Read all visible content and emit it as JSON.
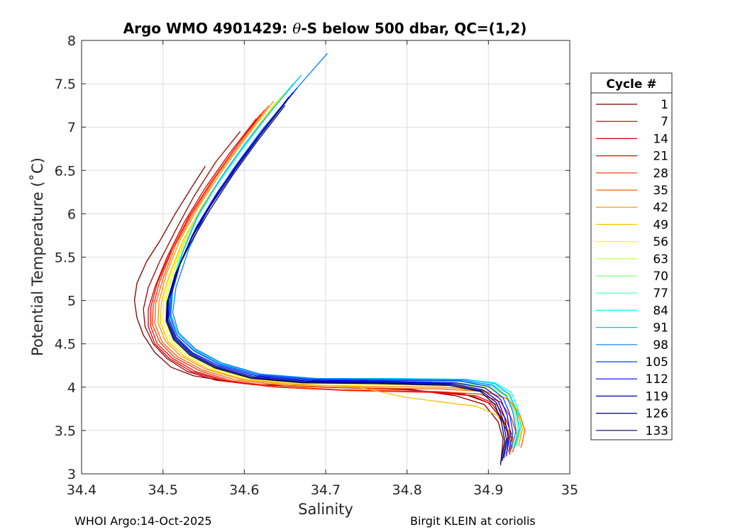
{
  "title_prefix": "Argo WMO 4901429: ",
  "title_theta": "θ",
  "title_suffix": "-S below 500 dbar,  QC=(1,2)",
  "footer_left": "WHOI Argo:14-Oct-2025",
  "footer_right": "Birgit KLEIN at coriolis",
  "chart_data": {
    "type": "line",
    "xlabel": "Salinity",
    "ylabel": "Potential Temperature (˚C)",
    "xlim": [
      34.4,
      35.0
    ],
    "ylim": [
      3.0,
      8.0
    ],
    "xticks": [
      34.4,
      34.5,
      34.6,
      34.7,
      34.8,
      34.9,
      35.0
    ],
    "xtick_labels": [
      "34.4",
      "34.5",
      "34.6",
      "34.7",
      "34.8",
      "34.9",
      "35"
    ],
    "yticks": [
      3.0,
      3.5,
      4.0,
      4.5,
      5.0,
      5.5,
      6.0,
      6.5,
      7.0,
      7.5,
      8.0
    ],
    "ytick_labels": [
      "3",
      "3.5",
      "4",
      "4.5",
      "5",
      "5.5",
      "6",
      "6.5",
      "7",
      "7.5",
      "8"
    ],
    "grid": true,
    "legend_title": "Cycle #",
    "legend_position": "outside-right",
    "colormap": "jet",
    "series": [
      {
        "name": "1",
        "color": "#800000",
        "x": [
          34.552,
          34.535,
          34.515,
          34.497,
          34.48,
          34.468,
          34.465,
          34.468,
          34.476,
          34.49,
          34.51,
          34.538,
          34.57,
          34.62,
          34.7,
          34.8,
          34.86,
          34.895,
          34.912,
          34.918,
          34.915
        ],
        "y": [
          6.55,
          6.3,
          6.0,
          5.7,
          5.45,
          5.2,
          5.0,
          4.8,
          4.6,
          4.4,
          4.23,
          4.13,
          4.08,
          4.03,
          4.0,
          3.98,
          3.9,
          3.8,
          3.6,
          3.4,
          3.1
        ]
      },
      {
        "name": "7",
        "color": "#a00000",
        "x": [
          34.595,
          34.565,
          34.538,
          34.515,
          34.496,
          34.482,
          34.476,
          34.478,
          34.488,
          34.505,
          34.53,
          34.565,
          34.61,
          34.7,
          34.8,
          34.87,
          34.9,
          34.915,
          34.925,
          34.922
        ],
        "y": [
          6.95,
          6.6,
          6.2,
          5.8,
          5.45,
          5.15,
          4.9,
          4.7,
          4.5,
          4.33,
          4.18,
          4.08,
          4.03,
          4.0,
          3.97,
          3.92,
          3.82,
          3.65,
          3.45,
          3.2
        ]
      },
      {
        "name": "14",
        "color": "#d00000",
        "x": [
          34.615,
          34.582,
          34.552,
          34.526,
          34.505,
          34.49,
          34.482,
          34.482,
          34.49,
          34.508,
          34.535,
          34.575,
          34.63,
          34.72,
          34.82,
          34.88,
          34.905,
          34.918,
          34.928,
          34.925
        ],
        "y": [
          7.1,
          6.7,
          6.3,
          5.9,
          5.5,
          5.15,
          4.9,
          4.7,
          4.5,
          4.33,
          4.18,
          4.07,
          4.01,
          3.97,
          3.95,
          3.9,
          3.8,
          3.62,
          3.42,
          3.25
        ]
      },
      {
        "name": "21",
        "color": "#ff0000",
        "x": [
          34.62,
          34.588,
          34.558,
          34.531,
          34.509,
          34.493,
          34.485,
          34.485,
          34.493,
          34.512,
          34.54,
          34.58,
          34.64,
          34.73,
          34.83,
          34.885,
          34.91,
          34.922,
          34.93,
          34.926
        ],
        "y": [
          7.15,
          6.75,
          6.35,
          5.95,
          5.55,
          5.2,
          4.92,
          4.7,
          4.5,
          4.33,
          4.18,
          4.07,
          4.0,
          3.96,
          3.94,
          3.9,
          3.8,
          3.62,
          3.42,
          3.22
        ]
      },
      {
        "name": "28",
        "color": "#ff3000",
        "x": [
          34.625,
          34.592,
          34.562,
          34.535,
          34.512,
          34.496,
          34.488,
          34.487,
          34.496,
          34.515,
          34.545,
          34.585,
          34.645,
          34.735,
          34.835,
          34.89,
          34.915,
          34.928,
          34.935,
          34.93
        ],
        "y": [
          7.2,
          6.8,
          6.4,
          6.0,
          5.6,
          5.22,
          4.94,
          4.72,
          4.52,
          4.34,
          4.19,
          4.07,
          4.0,
          3.96,
          3.95,
          3.92,
          3.83,
          3.65,
          3.45,
          3.25
        ]
      },
      {
        "name": "35",
        "color": "#ff6000",
        "x": [
          34.63,
          34.598,
          34.567,
          34.54,
          34.516,
          34.5,
          34.491,
          34.49,
          34.499,
          34.518,
          34.548,
          34.59,
          34.65,
          34.74,
          34.84,
          34.895,
          34.925,
          34.938,
          34.945,
          34.94
        ],
        "y": [
          7.25,
          6.85,
          6.45,
          6.05,
          5.65,
          5.25,
          4.96,
          4.73,
          4.52,
          4.35,
          4.2,
          4.08,
          4.02,
          3.99,
          3.98,
          3.95,
          3.86,
          3.7,
          3.5,
          3.3
        ]
      },
      {
        "name": "42",
        "color": "#ff9000",
        "x": [
          34.636,
          34.604,
          34.573,
          34.545,
          34.521,
          34.504,
          34.495,
          34.494,
          34.503,
          34.522,
          34.552,
          34.595,
          34.655,
          34.745,
          34.845,
          34.895,
          34.922,
          34.935,
          34.942,
          34.937
        ],
        "y": [
          7.3,
          6.9,
          6.5,
          6.1,
          5.7,
          5.3,
          4.98,
          4.74,
          4.53,
          4.36,
          4.21,
          4.09,
          4.03,
          4.01,
          4.0,
          3.96,
          3.87,
          3.72,
          3.52,
          3.32
        ]
      },
      {
        "name": "49",
        "color": "#ffc000",
        "x": [
          34.64,
          34.608,
          34.577,
          34.549,
          34.525,
          34.508,
          34.498,
          34.497,
          34.506,
          34.526,
          34.556,
          34.6,
          34.66,
          34.74,
          34.8,
          34.85,
          34.885,
          34.91,
          34.925,
          34.93
        ],
        "y": [
          7.3,
          6.9,
          6.5,
          6.1,
          5.7,
          5.3,
          4.98,
          4.74,
          4.53,
          4.36,
          4.21,
          4.09,
          4.04,
          4.0,
          3.88,
          3.82,
          3.78,
          3.68,
          3.5,
          3.3
        ]
      },
      {
        "name": "56",
        "color": "#ffff00",
        "x": [
          34.645,
          34.613,
          34.582,
          34.553,
          34.529,
          34.511,
          34.501,
          34.5,
          34.509,
          34.529,
          34.56,
          34.605,
          34.665,
          34.755,
          34.85,
          34.9,
          34.925,
          34.936,
          34.942,
          34.935
        ],
        "y": [
          7.35,
          6.95,
          6.55,
          6.15,
          5.75,
          5.35,
          5.0,
          4.75,
          4.54,
          4.37,
          4.22,
          4.1,
          4.05,
          4.03,
          4.02,
          3.99,
          3.9,
          3.74,
          3.54,
          3.34
        ]
      },
      {
        "name": "63",
        "color": "#c0ff40",
        "x": [
          34.65,
          34.618,
          34.586,
          34.557,
          34.532,
          34.514,
          34.504,
          34.503,
          34.512,
          34.532,
          34.563,
          34.608,
          34.67,
          34.76,
          34.855,
          34.9,
          34.922,
          34.933,
          34.938,
          34.932
        ],
        "y": [
          7.4,
          7.0,
          6.6,
          6.2,
          5.8,
          5.38,
          5.02,
          4.76,
          4.55,
          4.38,
          4.23,
          4.11,
          4.06,
          4.05,
          4.04,
          4.0,
          3.9,
          3.72,
          3.52,
          3.3
        ]
      },
      {
        "name": "70",
        "color": "#80ff80",
        "x": [
          34.655,
          34.622,
          34.59,
          34.561,
          34.536,
          34.518,
          34.507,
          34.505,
          34.514,
          34.534,
          34.566,
          34.612,
          34.675,
          34.765,
          34.86,
          34.902,
          34.922,
          34.932,
          34.936,
          34.93
        ],
        "y": [
          7.45,
          7.05,
          6.65,
          6.25,
          5.85,
          5.42,
          5.04,
          4.78,
          4.56,
          4.39,
          4.24,
          4.12,
          4.07,
          4.06,
          4.05,
          4.01,
          3.9,
          3.72,
          3.5,
          3.28
        ]
      },
      {
        "name": "77",
        "color": "#40ffc0",
        "x": [
          34.66,
          34.626,
          34.594,
          34.564,
          34.539,
          34.52,
          34.509,
          34.507,
          34.516,
          34.536,
          34.568,
          34.615,
          34.68,
          34.77,
          34.865,
          34.905,
          34.925,
          34.934,
          34.938,
          34.932
        ],
        "y": [
          7.5,
          7.1,
          6.7,
          6.3,
          5.9,
          5.45,
          5.06,
          4.8,
          4.58,
          4.4,
          4.25,
          4.13,
          4.08,
          4.08,
          4.07,
          4.03,
          3.92,
          3.74,
          3.52,
          3.3
        ]
      },
      {
        "name": "84",
        "color": "#00ffff",
        "x": [
          34.665,
          34.63,
          34.597,
          34.567,
          34.541,
          34.522,
          34.51,
          34.508,
          34.517,
          34.538,
          34.57,
          34.618,
          34.685,
          34.775,
          34.87,
          34.908,
          34.928,
          34.936,
          34.94,
          34.934
        ],
        "y": [
          7.55,
          7.15,
          6.75,
          6.35,
          5.95,
          5.5,
          5.1,
          4.82,
          4.6,
          4.42,
          4.26,
          4.14,
          4.09,
          4.1,
          4.09,
          4.05,
          3.94,
          3.76,
          3.54,
          3.32
        ]
      },
      {
        "name": "91",
        "color": "#00c0ff",
        "x": [
          34.67,
          34.634,
          34.6,
          34.57,
          34.544,
          34.524,
          34.512,
          34.51,
          34.518,
          34.539,
          34.571,
          34.62,
          34.688,
          34.778,
          34.872,
          34.908,
          34.926,
          34.934,
          34.938,
          34.932
        ],
        "y": [
          7.6,
          7.2,
          6.8,
          6.4,
          6.0,
          5.55,
          5.12,
          4.84,
          4.62,
          4.43,
          4.27,
          4.15,
          4.1,
          4.1,
          4.09,
          4.04,
          3.92,
          3.74,
          3.52,
          3.3
        ]
      },
      {
        "name": "98",
        "color": "#0080ff",
        "x": [
          34.702,
          34.66,
          34.62,
          34.585,
          34.555,
          34.532,
          34.516,
          34.512,
          34.519,
          34.54,
          34.572,
          34.62,
          34.688,
          34.778,
          34.87,
          34.905,
          34.922,
          34.93,
          34.934,
          34.928
        ],
        "y": [
          7.85,
          7.4,
          6.95,
          6.5,
          6.05,
          5.6,
          5.15,
          4.86,
          4.63,
          4.44,
          4.28,
          4.15,
          4.1,
          4.09,
          4.08,
          4.02,
          3.9,
          3.72,
          3.5,
          3.28
        ]
      },
      {
        "name": "105",
        "color": "#0040ff",
        "x": [
          34.665,
          34.63,
          34.597,
          34.567,
          34.541,
          34.522,
          34.511,
          34.509,
          34.517,
          34.538,
          34.57,
          34.618,
          34.685,
          34.775,
          34.865,
          34.9,
          34.918,
          34.926,
          34.93,
          34.925
        ],
        "y": [
          7.45,
          7.05,
          6.65,
          6.25,
          5.85,
          5.45,
          5.08,
          4.82,
          4.6,
          4.42,
          4.26,
          4.14,
          4.09,
          4.08,
          4.07,
          4.01,
          3.88,
          3.7,
          3.48,
          3.25
        ]
      },
      {
        "name": "112",
        "color": "#0000ff",
        "x": [
          34.66,
          34.626,
          34.594,
          34.564,
          34.539,
          34.52,
          34.509,
          34.507,
          34.516,
          34.536,
          34.568,
          34.615,
          34.68,
          34.77,
          34.86,
          34.896,
          34.915,
          34.923,
          34.927,
          34.922
        ],
        "y": [
          7.4,
          7.0,
          6.6,
          6.2,
          5.8,
          5.4,
          5.05,
          4.8,
          4.58,
          4.4,
          4.25,
          4.13,
          4.08,
          4.07,
          4.05,
          3.99,
          3.86,
          3.68,
          3.46,
          3.22
        ]
      },
      {
        "name": "119",
        "color": "#0000c0",
        "x": [
          34.655,
          34.622,
          34.59,
          34.561,
          34.536,
          34.518,
          34.507,
          34.506,
          34.515,
          34.535,
          34.566,
          34.612,
          34.676,
          34.766,
          34.856,
          34.893,
          34.912,
          34.92,
          34.924,
          34.919
        ],
        "y": [
          7.35,
          6.95,
          6.55,
          6.15,
          5.75,
          5.35,
          5.02,
          4.78,
          4.57,
          4.39,
          4.24,
          4.12,
          4.07,
          4.06,
          4.04,
          3.97,
          3.84,
          3.65,
          3.43,
          3.18
        ]
      },
      {
        "name": "126",
        "color": "#000080",
        "x": [
          34.652,
          34.619,
          34.588,
          34.559,
          34.534,
          34.516,
          34.506,
          34.505,
          34.514,
          34.534,
          34.565,
          34.61,
          34.674,
          34.764,
          34.854,
          34.891,
          34.91,
          34.918,
          34.922,
          34.917
        ],
        "y": [
          7.3,
          6.9,
          6.5,
          6.1,
          5.7,
          5.32,
          5.0,
          4.77,
          4.56,
          4.38,
          4.23,
          4.11,
          4.06,
          4.05,
          4.03,
          3.96,
          3.82,
          3.62,
          3.4,
          3.15
        ]
      },
      {
        "name": "133",
        "color": "#000060",
        "x": [
          34.65,
          34.617,
          34.586,
          34.558,
          34.533,
          34.515,
          34.505,
          34.504,
          34.513,
          34.533,
          34.564,
          34.609,
          34.672,
          34.762,
          34.852,
          34.89,
          34.908,
          34.916,
          34.92,
          34.915
        ],
        "y": [
          7.25,
          6.85,
          6.45,
          6.05,
          5.65,
          5.3,
          4.98,
          4.76,
          4.55,
          4.37,
          4.22,
          4.1,
          4.05,
          4.04,
          4.02,
          3.95,
          3.8,
          3.6,
          3.38,
          3.12
        ]
      }
    ]
  }
}
